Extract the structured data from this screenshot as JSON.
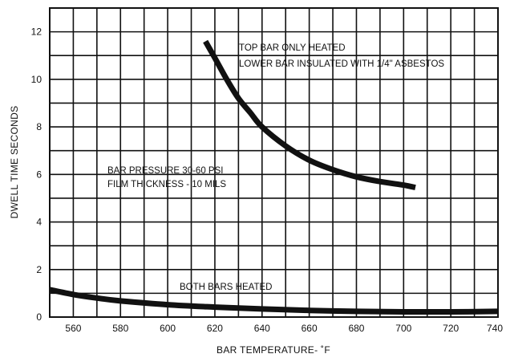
{
  "chart_data": {
    "type": "line",
    "title": "",
    "xlabel": "BAR TEMPERATURE- ˚F",
    "ylabel": "DWELL TIME SECONDS",
    "xlim": [
      550,
      740
    ],
    "ylim": [
      0,
      13
    ],
    "xticks": [
      560,
      580,
      600,
      620,
      640,
      660,
      680,
      700,
      720,
      740
    ],
    "yticks": [
      0,
      2,
      4,
      6,
      8,
      10,
      12
    ],
    "grid": true,
    "series": [
      {
        "x": [
          616,
          620,
          625,
          630,
          635,
          640,
          650,
          660,
          670,
          680,
          690,
          700,
          705
        ],
        "y": [
          11.6,
          10.9,
          10.0,
          9.2,
          8.6,
          8.0,
          7.2,
          6.6,
          6.2,
          5.9,
          5.7,
          5.55,
          5.45
        ]
      },
      {
        "x": [
          550,
          560,
          570,
          580,
          600,
          620,
          640,
          660,
          680,
          700,
          720,
          740
        ],
        "y": [
          1.15,
          0.95,
          0.8,
          0.68,
          0.52,
          0.42,
          0.34,
          0.28,
          0.24,
          0.22,
          0.22,
          0.24
        ]
      }
    ],
    "annotations": [
      {
        "lines": [
          "TOP BAR ONLY HEATED",
          "LOWER BAR INSULATED WITH 1/4\" ASBESTOS"
        ]
      },
      {
        "lines": [
          "BAR PRESSURE 30-60 PSI",
          "FILM THICKNESS - 10 MILS"
        ]
      },
      {
        "lines": [
          "BOTH BARS HEATED"
        ]
      }
    ]
  }
}
